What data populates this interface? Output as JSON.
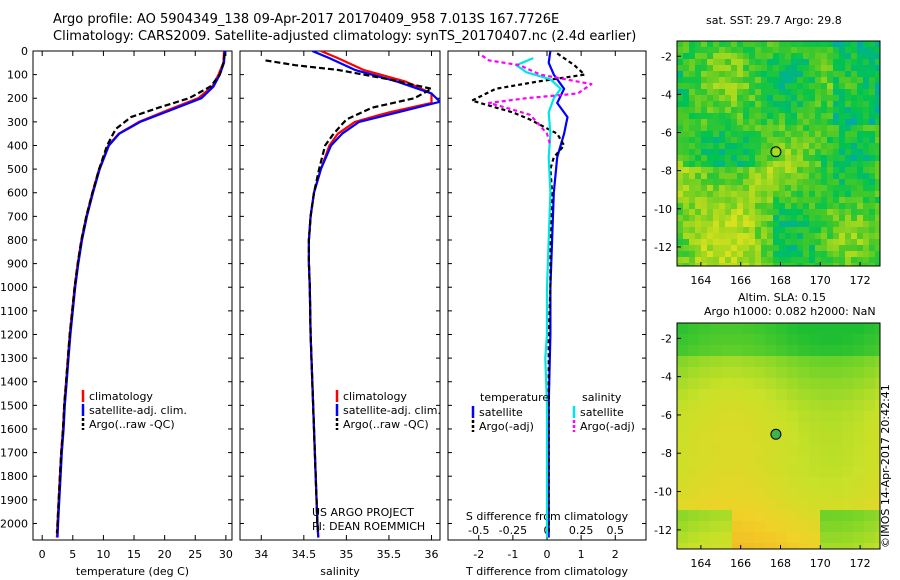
{
  "header": {
    "line1": "Argo profile: AO 5904349_138 09-Apr-2017 20170409_958 7.013S 167.7726E",
    "line2": "Climatology: CARS2009. Satellite-adjusted climatology: synTS_20170407.nc (2.4d earlier)"
  },
  "chart_data": [
    {
      "id": "temp",
      "type": "line",
      "xlabel": "temperature (deg C)",
      "ylabel": "",
      "xlim": [
        -1.5,
        31
      ],
      "ylim": [
        2070,
        0
      ],
      "x_ticks": [
        0,
        5,
        10,
        15,
        20,
        25,
        30
      ],
      "y_ticks": [
        0,
        100,
        200,
        300,
        400,
        500,
        600,
        700,
        800,
        900,
        1000,
        1100,
        1200,
        1300,
        1400,
        1500,
        1600,
        1700,
        1800,
        1900,
        2000
      ],
      "legend": [
        "climatology",
        "satellite-adj. clim.",
        "Argo(..raw -QC)"
      ],
      "series": [
        {
          "name": "climatology",
          "color": "#ff0000",
          "dash": "",
          "points": [
            [
              29.7,
              0
            ],
            [
              29.6,
              50
            ],
            [
              28.8,
              100
            ],
            [
              27.8,
              150
            ],
            [
              25.5,
              200
            ],
            [
              20.5,
              250
            ],
            [
              15.8,
              300
            ],
            [
              12.5,
              350
            ],
            [
              10.8,
              400
            ],
            [
              9.3,
              500
            ],
            [
              8.2,
              600
            ],
            [
              7.2,
              700
            ],
            [
              6.4,
              800
            ],
            [
              5.8,
              900
            ],
            [
              5.3,
              1000
            ],
            [
              4.9,
              1100
            ],
            [
              4.5,
              1200
            ],
            [
              4.2,
              1300
            ],
            [
              3.9,
              1400
            ],
            [
              3.6,
              1500
            ],
            [
              3.4,
              1600
            ],
            [
              3.1,
              1700
            ],
            [
              2.9,
              1800
            ],
            [
              2.7,
              1900
            ],
            [
              2.5,
              2000
            ],
            [
              2.4,
              2060
            ]
          ]
        },
        {
          "name": "satellite-adj. clim.",
          "color": "#0000ff",
          "dash": "",
          "points": [
            [
              29.8,
              0
            ],
            [
              29.7,
              50
            ],
            [
              29.0,
              100
            ],
            [
              28.0,
              150
            ],
            [
              26.0,
              200
            ],
            [
              21.0,
              250
            ],
            [
              16.0,
              300
            ],
            [
              12.6,
              350
            ],
            [
              10.9,
              400
            ],
            [
              9.4,
              500
            ],
            [
              8.3,
              600
            ],
            [
              7.3,
              700
            ],
            [
              6.5,
              800
            ],
            [
              5.9,
              900
            ],
            [
              5.4,
              1000
            ],
            [
              5.0,
              1100
            ],
            [
              4.6,
              1200
            ],
            [
              4.3,
              1300
            ],
            [
              4.0,
              1400
            ],
            [
              3.7,
              1500
            ],
            [
              3.5,
              1600
            ],
            [
              3.2,
              1700
            ],
            [
              3.0,
              1800
            ],
            [
              2.8,
              1900
            ],
            [
              2.6,
              2000
            ],
            [
              2.5,
              2060
            ]
          ]
        },
        {
          "name": "Argo(..raw -QC)",
          "color": "#000000",
          "dash": "6,3",
          "points": [
            [
              29.8,
              10
            ],
            [
              29.6,
              50
            ],
            [
              29.0,
              100
            ],
            [
              27.5,
              150
            ],
            [
              24.0,
              200
            ],
            [
              19.0,
              240
            ],
            [
              14.5,
              280
            ],
            [
              12.0,
              330
            ],
            [
              10.6,
              400
            ],
            [
              9.3,
              500
            ],
            [
              8.2,
              600
            ],
            [
              7.2,
              700
            ],
            [
              6.4,
              800
            ],
            [
              5.8,
              900
            ],
            [
              5.3,
              1000
            ],
            [
              4.9,
              1100
            ],
            [
              4.5,
              1200
            ],
            [
              4.2,
              1300
            ],
            [
              3.9,
              1400
            ],
            [
              3.6,
              1500
            ],
            [
              3.4,
              1600
            ],
            [
              3.1,
              1700
            ],
            [
              2.9,
              1800
            ],
            [
              2.7,
              1900
            ],
            [
              2.5,
              2000
            ],
            [
              2.4,
              2040
            ]
          ]
        }
      ]
    },
    {
      "id": "sal",
      "type": "line",
      "xlabel": "salinity",
      "ylabel": "",
      "xlim": [
        33.75,
        36.1
      ],
      "ylim": [
        2070,
        0
      ],
      "x_ticks": [
        34,
        34.5,
        35,
        35.5,
        36
      ],
      "legend": [
        "climatology",
        "satellite-adj. clim.",
        "Argo(..raw -QC)"
      ],
      "annotations": [
        "US ARGO PROJECT",
        "PI: DEAN ROEMMICH"
      ],
      "series": [
        {
          "name": "climatology",
          "color": "#ff0000",
          "dash": "",
          "points": [
            [
              34.7,
              0
            ],
            [
              34.9,
              30
            ],
            [
              35.2,
              80
            ],
            [
              35.7,
              130
            ],
            [
              36.0,
              180
            ],
            [
              36.0,
              220
            ],
            [
              35.5,
              260
            ],
            [
              35.1,
              300
            ],
            [
              34.9,
              350
            ],
            [
              34.8,
              400
            ],
            [
              34.7,
              500
            ],
            [
              34.62,
              600
            ],
            [
              34.58,
              700
            ],
            [
              34.56,
              800
            ],
            [
              34.56,
              900
            ],
            [
              34.57,
              1000
            ],
            [
              34.58,
              1200
            ],
            [
              34.6,
              1400
            ],
            [
              34.62,
              1600
            ],
            [
              34.64,
              1800
            ],
            [
              34.66,
              2000
            ],
            [
              34.67,
              2060
            ]
          ]
        },
        {
          "name": "satellite-adj. clim.",
          "color": "#0000ff",
          "dash": "",
          "points": [
            [
              34.6,
              0
            ],
            [
              34.8,
              30
            ],
            [
              35.1,
              80
            ],
            [
              35.6,
              130
            ],
            [
              36.0,
              180
            ],
            [
              36.1,
              215
            ],
            [
              35.6,
              260
            ],
            [
              35.15,
              300
            ],
            [
              34.95,
              350
            ],
            [
              34.82,
              400
            ],
            [
              34.7,
              500
            ],
            [
              34.62,
              600
            ],
            [
              34.58,
              700
            ],
            [
              34.56,
              800
            ],
            [
              34.56,
              900
            ],
            [
              34.57,
              1000
            ],
            [
              34.58,
              1200
            ],
            [
              34.6,
              1400
            ],
            [
              34.62,
              1600
            ],
            [
              34.64,
              1800
            ],
            [
              34.66,
              2000
            ],
            [
              34.67,
              2060
            ]
          ]
        },
        {
          "name": "Argo(..raw -QC)",
          "color": "#000000",
          "dash": "6,3",
          "points": [
            [
              34.05,
              40
            ],
            [
              34.4,
              60
            ],
            [
              34.9,
              80
            ],
            [
              35.5,
              120
            ],
            [
              36.0,
              160
            ],
            [
              35.8,
              200
            ],
            [
              35.3,
              240
            ],
            [
              35.0,
              290
            ],
            [
              34.85,
              350
            ],
            [
              34.75,
              400
            ],
            [
              34.68,
              500
            ],
            [
              34.62,
              600
            ],
            [
              34.58,
              700
            ],
            [
              34.56,
              800
            ],
            [
              34.56,
              900
            ],
            [
              34.57,
              1000
            ],
            [
              34.58,
              1200
            ],
            [
              34.6,
              1400
            ],
            [
              34.62,
              1600
            ],
            [
              34.64,
              1800
            ],
            [
              34.66,
              2000
            ],
            [
              34.67,
              2040
            ]
          ]
        }
      ]
    },
    {
      "id": "diff",
      "type": "line",
      "xlabel": "T difference from climatology",
      "top_axis_label": "S difference from climatology",
      "xlim": [
        -2.9,
        2.9
      ],
      "ylim": [
        2070,
        0
      ],
      "x_ticks": [
        -2,
        -1,
        0,
        1,
        2
      ],
      "top_ticks": [
        [
          "-0.5",
          -2
        ],
        [
          "-0.25",
          -1
        ],
        [
          "0",
          0
        ],
        [
          "0.25",
          1
        ],
        [
          "0.5",
          2
        ]
      ],
      "legend_titles": [
        "temperature",
        "salinity"
      ],
      "legend": [
        "satellite",
        "Argo(-adj)",
        "satellite",
        "Argo(-adj)"
      ],
      "series": [
        {
          "name": "temperature satellite",
          "color": "#0000ff",
          "dash": "",
          "points": [
            [
              0.1,
              0
            ],
            [
              0.05,
              50
            ],
            [
              0.2,
              100
            ],
            [
              0.5,
              160
            ],
            [
              0.3,
              220
            ],
            [
              0.6,
              280
            ],
            [
              0.5,
              350
            ],
            [
              0.3,
              450
            ],
            [
              0.2,
              600
            ],
            [
              0.15,
              800
            ],
            [
              0.1,
              1000
            ],
            [
              0.1,
              1200
            ],
            [
              0.05,
              1500
            ],
            [
              0.05,
              1800
            ],
            [
              0.05,
              2060
            ]
          ]
        },
        {
          "name": "temperature Argo(-adj)",
          "color": "#000000",
          "dash": "4,3",
          "points": [
            [
              0.3,
              10
            ],
            [
              0.8,
              60
            ],
            [
              1.1,
              100
            ],
            [
              -0.3,
              130
            ],
            [
              -1.5,
              160
            ],
            [
              -2.2,
              210
            ],
            [
              -1.0,
              260
            ],
            [
              -0.5,
              290
            ],
            [
              0.3,
              350
            ],
            [
              0.5,
              400
            ],
            [
              0.2,
              450
            ],
            [
              0.1,
              500
            ],
            [
              0.15,
              600
            ],
            [
              0.1,
              800
            ],
            [
              0.1,
              1000
            ],
            [
              0.05,
              1200
            ],
            [
              0.05,
              1500
            ],
            [
              0.05,
              2000
            ],
            [
              0.05,
              2040
            ]
          ]
        },
        {
          "name": "salinity satellite",
          "color": "#00e5e5",
          "dash": "",
          "points": [
            [
              -0.4,
              30
            ],
            [
              -0.9,
              60
            ],
            [
              -0.6,
              90
            ],
            [
              0.1,
              120
            ],
            [
              0.4,
              160
            ],
            [
              0.2,
              200
            ],
            [
              0.05,
              260
            ],
            [
              0.1,
              350
            ],
            [
              0.05,
              450
            ],
            [
              0.1,
              600
            ],
            [
              0.05,
              800
            ],
            [
              0.0,
              1000
            ],
            [
              0.0,
              1200
            ],
            [
              -0.05,
              1300
            ],
            [
              0.0,
              1500
            ],
            [
              0.0,
              2060
            ]
          ]
        },
        {
          "name": "salinity Argo(-adj)",
          "color": "#ff00ff",
          "dash": "4,3",
          "points": [
            [
              -1.9,
              20
            ],
            [
              -1.7,
              40
            ],
            [
              -0.8,
              60
            ],
            [
              -0.2,
              100
            ],
            [
              1.3,
              140
            ],
            [
              0.9,
              180
            ],
            [
              -0.6,
              200
            ],
            [
              -1.7,
              220
            ],
            [
              -1.2,
              240
            ],
            [
              -0.5,
              270
            ],
            [
              -0.3,
              300
            ],
            [
              0.0,
              350
            ],
            [
              0.1,
              400
            ]
          ]
        }
      ]
    },
    {
      "id": "sst_map",
      "type": "heatmap",
      "title": "sat. SST: 29.7 Argo: 29.8",
      "x_ticks": [
        164,
        166,
        168,
        170,
        172
      ],
      "y_ticks": [
        -2,
        -4,
        -6,
        -8,
        -10,
        -12
      ],
      "xlim": [
        162.8,
        173.0
      ],
      "ylim": [
        -13.0,
        -1.2
      ],
      "argo_position": [
        167.77,
        -7.01
      ]
    },
    {
      "id": "sla_map",
      "type": "heatmap",
      "title": "Altim. SLA: 0.15",
      "subtitle": "Argo h1000: 0.082 h2000: NaN",
      "x_ticks": [
        164,
        166,
        168,
        170,
        172
      ],
      "y_ticks": [
        -2,
        -4,
        -6,
        -8,
        -10,
        -12
      ],
      "xlim": [
        162.8,
        173.0
      ],
      "ylim": [
        -13.0,
        -1.2
      ],
      "argo_position": [
        167.77,
        -7.01
      ]
    }
  ],
  "credit": "©IMOS 14-Apr-2017 20:42:41",
  "colors": {
    "background": "#ffffff",
    "axis": "#000000"
  }
}
